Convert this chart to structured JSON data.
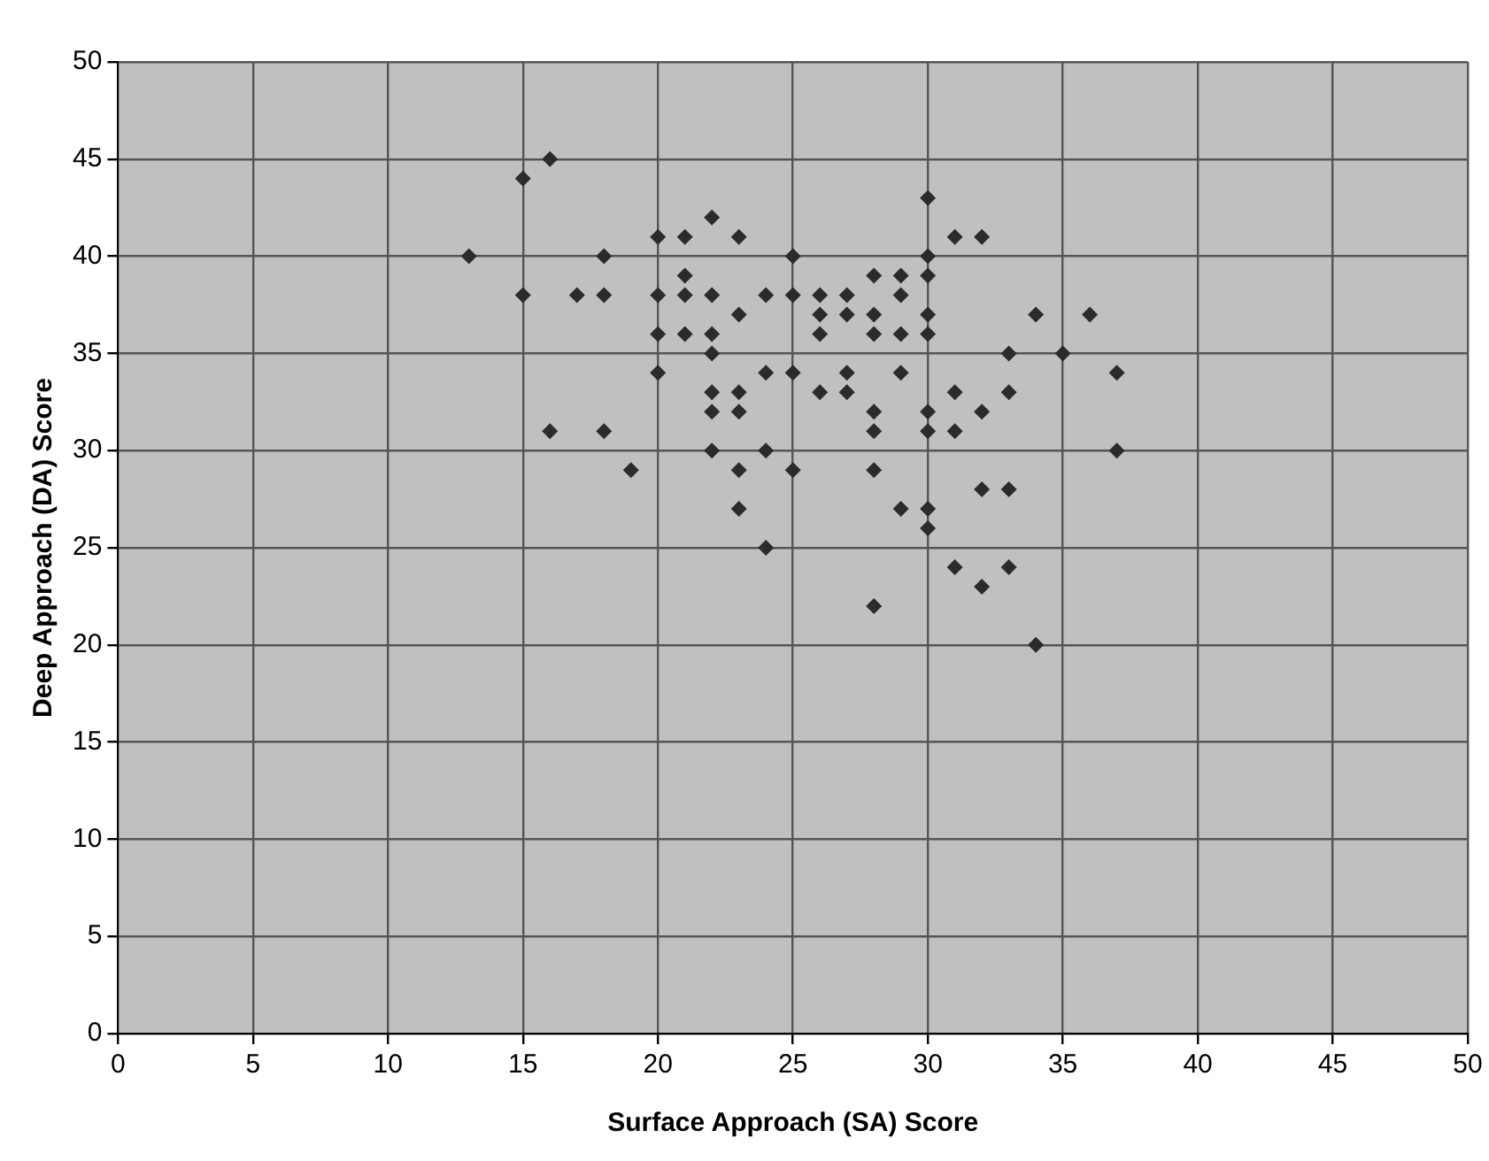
{
  "chart_data": {
    "type": "scatter",
    "xlabel": "Surface Approach (SA) Score",
    "ylabel": "Deep Approach (DA) Score",
    "xlim": [
      0,
      50
    ],
    "ylim": [
      0,
      50
    ],
    "xticks": [
      0,
      5,
      10,
      15,
      20,
      25,
      30,
      35,
      40,
      45,
      50
    ],
    "yticks": [
      0,
      5,
      10,
      15,
      20,
      25,
      30,
      35,
      40,
      45,
      50
    ],
    "grid": true,
    "legend": false,
    "marker": "diamond",
    "series": [
      {
        "color": "#2b2b2b",
        "x": [
          13,
          15,
          16,
          15,
          16,
          17,
          18,
          18,
          18,
          19,
          20,
          20,
          20,
          20,
          21,
          21,
          21,
          21,
          22,
          22,
          22,
          22,
          22,
          22,
          22,
          23,
          23,
          23,
          23,
          23,
          23,
          24,
          24,
          24,
          24,
          25,
          25,
          25,
          25,
          26,
          26,
          26,
          26,
          27,
          27,
          27,
          27,
          28,
          28,
          28,
          28,
          28,
          28,
          28,
          29,
          29,
          29,
          29,
          29,
          30,
          30,
          30,
          30,
          30,
          30,
          30,
          30,
          30,
          31,
          31,
          31,
          31,
          32,
          32,
          32,
          32,
          33,
          33,
          33,
          33,
          34,
          34,
          35,
          36,
          37,
          37
        ],
        "values": [
          40,
          44,
          45,
          38,
          31,
          38,
          40,
          38,
          31,
          29,
          41,
          38,
          36,
          34,
          41,
          39,
          38,
          36,
          42,
          38,
          36,
          35,
          33,
          32,
          30,
          41,
          37,
          33,
          32,
          29,
          27,
          38,
          34,
          30,
          25,
          40,
          38,
          34,
          29,
          38,
          37,
          36,
          33,
          38,
          37,
          34,
          33,
          39,
          37,
          36,
          32,
          31,
          29,
          22,
          39,
          38,
          36,
          34,
          27,
          43,
          40,
          39,
          37,
          36,
          32,
          31,
          27,
          26,
          41,
          33,
          31,
          24,
          41,
          32,
          28,
          23,
          35,
          33,
          28,
          24,
          37,
          20,
          35,
          37,
          34,
          30
        ]
      }
    ]
  }
}
